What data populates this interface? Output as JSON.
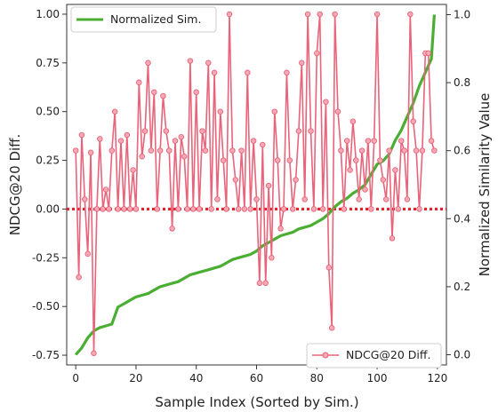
{
  "chart_data": {
    "type": "line",
    "xlabel": "Sample Index (Sorted by Sim.)",
    "ylabel": "NDCG@20 Diff.",
    "y2label": "Normalized Similarity Value",
    "xlim": [
      -3,
      123
    ],
    "ylim": [
      -0.8,
      1.05
    ],
    "y2lim": [
      -0.03,
      1.03
    ],
    "xticks": [
      "0",
      "20",
      "40",
      "60",
      "80",
      "100",
      "120"
    ],
    "yticks": [
      "-0.75",
      "-0.50",
      "-0.25",
      "0.00",
      "0.25",
      "0.50",
      "0.75",
      "1.00"
    ],
    "y2ticks": [
      "0.0",
      "0.2",
      "0.4",
      "0.6",
      "0.8",
      "1.0"
    ],
    "reference_line": 0.0,
    "legend_top": "Normalized Sim.",
    "legend_bottom": "NDCG@20 Diff.",
    "colors": {
      "ndcg": "#e8647a",
      "ndcg_marker_fill": "#f6a9b5",
      "similarity": "#4aae33",
      "reference": "#e8202a"
    },
    "series": [
      {
        "name": "NDCG@20 Diff.",
        "axis": "left",
        "x": [
          0,
          1,
          2,
          3,
          4,
          5,
          6,
          7,
          8,
          9,
          10,
          11,
          12,
          13,
          14,
          15,
          16,
          17,
          18,
          19,
          20,
          21,
          22,
          23,
          24,
          25,
          26,
          27,
          28,
          29,
          30,
          31,
          32,
          33,
          34,
          35,
          36,
          37,
          38,
          39,
          40,
          41,
          42,
          43,
          44,
          45,
          46,
          47,
          48,
          49,
          50,
          51,
          52,
          53,
          54,
          55,
          56,
          57,
          58,
          59,
          60,
          61,
          62,
          63,
          64,
          65,
          66,
          67,
          68,
          69,
          70,
          71,
          72,
          73,
          74,
          75,
          76,
          77,
          78,
          79,
          80,
          81,
          82,
          83,
          84,
          85,
          86,
          87,
          88,
          89,
          90,
          91,
          92,
          93,
          94,
          95,
          96,
          97,
          98,
          99,
          100,
          101,
          102,
          103,
          104,
          105,
          106,
          107,
          108,
          109,
          110,
          111,
          112,
          113,
          114,
          115,
          116,
          117,
          118,
          119
        ],
        "values": [
          0.3,
          -0.35,
          0.38,
          0.05,
          -0.23,
          0.29,
          -0.74,
          0.0,
          0.36,
          0.0,
          0.1,
          0.0,
          0.3,
          0.5,
          0.0,
          0.35,
          0.0,
          0.38,
          0.0,
          0.2,
          0.0,
          0.65,
          0.27,
          0.4,
          0.75,
          0.3,
          0.6,
          0.0,
          0.3,
          0.58,
          0.4,
          0.3,
          -0.1,
          0.35,
          0.0,
          0.37,
          0.27,
          0.0,
          0.76,
          0.0,
          0.6,
          0.0,
          0.4,
          0.3,
          0.75,
          0.0,
          0.7,
          0.05,
          0.5,
          0.25,
          0.0,
          1.0,
          0.3,
          0.15,
          0.0,
          0.3,
          0.0,
          0.7,
          0.0,
          0.35,
          0.05,
          -0.38,
          0.33,
          -0.38,
          0.12,
          -0.25,
          0.5,
          0.25,
          -0.1,
          0.0,
          0.7,
          0.25,
          0.0,
          0.15,
          0.4,
          0.75,
          0.05,
          1.0,
          0.4,
          0.0,
          0.8,
          1.0,
          0.0,
          0.55,
          -0.3,
          -0.61,
          1.0,
          0.5,
          0.3,
          0.0,
          0.35,
          0.2,
          0.45,
          0.25,
          0.05,
          0.3,
          0.1,
          0.35,
          0.0,
          0.35,
          1.0,
          0.25,
          0.15,
          0.05,
          0.3,
          -0.15,
          0.2,
          0.0,
          0.35,
          0.3,
          0.05,
          1.0,
          0.45,
          0.3,
          0.0,
          0.3,
          0.8,
          0.8,
          0.35,
          0.3
        ]
      },
      {
        "name": "Normalized Sim.",
        "axis": "right",
        "x": [
          0,
          2,
          4,
          6,
          8,
          10,
          12,
          14,
          16,
          18,
          20,
          22,
          24,
          26,
          28,
          30,
          32,
          34,
          36,
          38,
          40,
          42,
          44,
          46,
          48,
          50,
          52,
          54,
          56,
          58,
          60,
          62,
          64,
          66,
          68,
          70,
          72,
          74,
          76,
          78,
          80,
          82,
          84,
          86,
          88,
          90,
          92,
          94,
          96,
          98,
          100,
          102,
          104,
          106,
          108,
          110,
          112,
          114,
          116,
          118,
          119
        ],
        "values": [
          0.0,
          0.02,
          0.05,
          0.07,
          0.08,
          0.085,
          0.09,
          0.14,
          0.15,
          0.16,
          0.17,
          0.175,
          0.18,
          0.19,
          0.2,
          0.205,
          0.21,
          0.215,
          0.225,
          0.235,
          0.24,
          0.245,
          0.25,
          0.255,
          0.26,
          0.27,
          0.28,
          0.285,
          0.29,
          0.295,
          0.305,
          0.32,
          0.33,
          0.34,
          0.35,
          0.355,
          0.36,
          0.37,
          0.375,
          0.38,
          0.39,
          0.4,
          0.415,
          0.435,
          0.45,
          0.46,
          0.475,
          0.485,
          0.5,
          0.53,
          0.56,
          0.57,
          0.59,
          0.63,
          0.66,
          0.7,
          0.74,
          0.79,
          0.83,
          0.87,
          1.0
        ]
      }
    ]
  }
}
